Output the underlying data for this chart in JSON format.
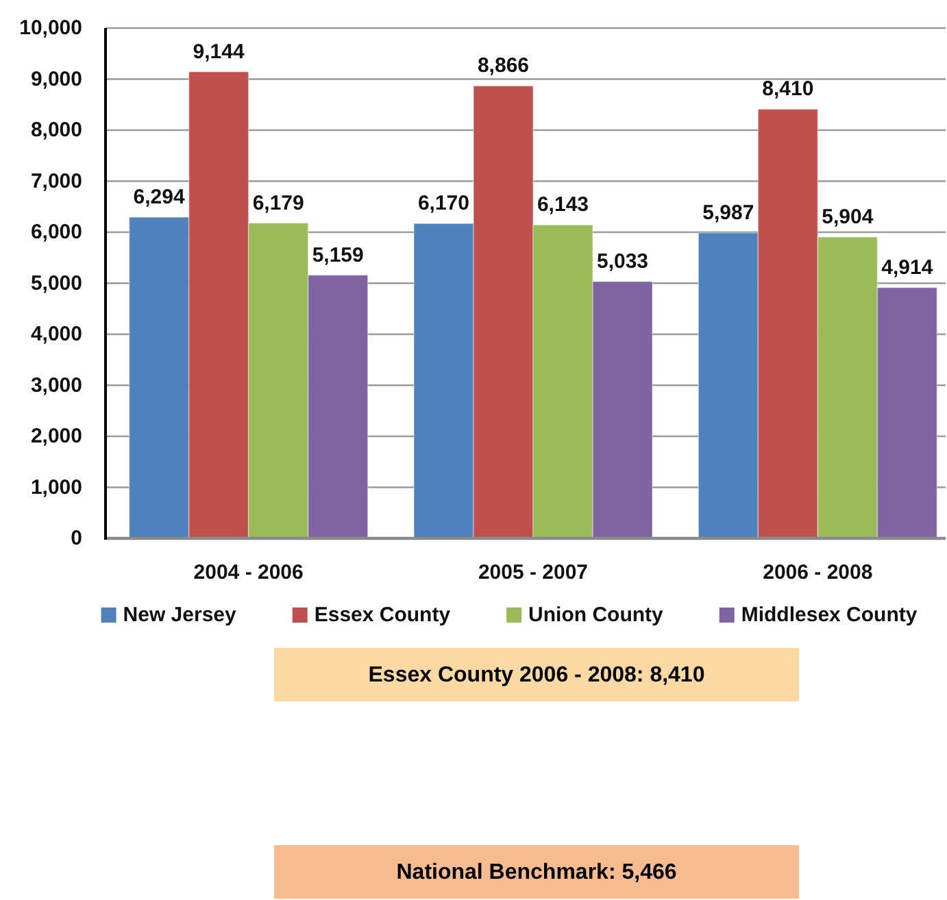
{
  "chart_data": {
    "type": "bar",
    "categories": [
      "2004 - 2006",
      "2005 - 2007",
      "2006 - 2008"
    ],
    "series": [
      {
        "name": "New Jersey",
        "color": "#4f81bd",
        "values": [
          6294,
          6170,
          5987
        ],
        "value_labels": [
          "6,294",
          "6,170",
          "5,987"
        ]
      },
      {
        "name": "Essex County",
        "color": "#c0504d",
        "values": [
          9144,
          8866,
          8410
        ],
        "value_labels": [
          "9,144",
          "8,866",
          "8,410"
        ]
      },
      {
        "name": "Union County",
        "color": "#9bbb59",
        "values": [
          6179,
          6143,
          5904
        ],
        "value_labels": [
          "6,179",
          "6,143",
          "5,904"
        ]
      },
      {
        "name": "Middlesex County",
        "color": "#8064a2",
        "values": [
          5159,
          5033,
          4914
        ],
        "value_labels": [
          "5,159",
          "5,033",
          "4,914"
        ]
      }
    ],
    "ylim": [
      0,
      10000
    ],
    "yticks": [
      0,
      {
        "value": 1000,
        "label": "1,000"
      },
      {
        "value": 2000,
        "label": "2,000"
      },
      {
        "value": 3000,
        "label": "3,000"
      },
      {
        "value": 4000,
        "label": "4,000"
      },
      {
        "value": 5000,
        "label": "5,000"
      },
      {
        "value": 6000,
        "label": "6,000"
      },
      {
        "value": 7000,
        "label": "7,000"
      },
      {
        "value": 8000,
        "label": "8,000"
      },
      {
        "value": 9000,
        "label": "9,000"
      },
      {
        "value": 10000,
        "label": "10,000"
      }
    ],
    "grid": "y",
    "legend": "bottom",
    "annotations": [
      "Essex County 2006 - 2008: 8,410",
      "National Benchmark: 5,466"
    ]
  }
}
